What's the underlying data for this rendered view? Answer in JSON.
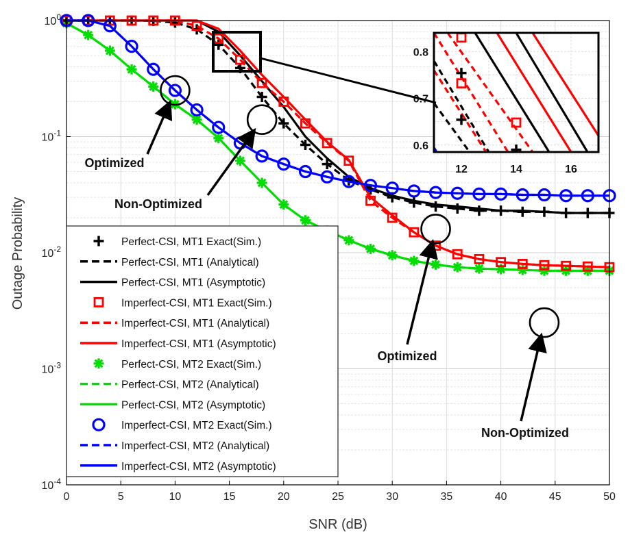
{
  "chart_data": {
    "type": "line",
    "yscale": "log",
    "xlabel": "SNR (dB)",
    "ylabel": "Outage Probability",
    "xlim": [
      0,
      50
    ],
    "ylim_exp": [
      -4,
      0
    ],
    "grid": true,
    "xticks": [
      0,
      5,
      10,
      15,
      20,
      25,
      30,
      35,
      40,
      45,
      50
    ],
    "yticks": [
      {
        "base": "10",
        "exp": "0"
      },
      {
        "base": "10",
        "exp": "-1"
      },
      {
        "base": "10",
        "exp": "-2"
      },
      {
        "base": "10",
        "exp": "-3"
      },
      {
        "base": "10",
        "exp": "-4"
      }
    ],
    "x": [
      0,
      2,
      4,
      6,
      8,
      10,
      12,
      14,
      16,
      18,
      20,
      22,
      24,
      26,
      28,
      30,
      32,
      34,
      36,
      38,
      40,
      42,
      44,
      46,
      48,
      50
    ],
    "series": [
      {
        "name": "Perfect-CSI, MT1 Exact(Sim.)",
        "color": "#000000",
        "style": "marker",
        "marker": "plus",
        "values": [
          1,
          1,
          1,
          1,
          0.995,
          0.96,
          0.84,
          0.62,
          0.39,
          0.22,
          0.13,
          0.085,
          0.058,
          0.042,
          0.035,
          0.03,
          0.027,
          0.025,
          0.024,
          0.023,
          0.023,
          0.0225,
          0.0225,
          0.022,
          0.022,
          0.022
        ]
      },
      {
        "name": "Perfect-CSI, MT1 (Analytical)",
        "color": "#000000",
        "style": "dash",
        "values": [
          1,
          1,
          1,
          1,
          0.995,
          0.96,
          0.84,
          0.62,
          0.39,
          0.22,
          0.13,
          0.085,
          0.058,
          0.042,
          0.035,
          0.03,
          0.027,
          0.025,
          0.024,
          0.023,
          0.023,
          0.0225,
          0.0225,
          0.022,
          0.022,
          0.022
        ]
      },
      {
        "name": "Perfect-CSI, MT1 (Asymptotic)",
        "color": "#000000",
        "style": "solid",
        "values": [
          1,
          1,
          1,
          1,
          1,
          1,
          1,
          0.8,
          0.5,
          0.3,
          0.18,
          0.1,
          0.065,
          0.045,
          0.036,
          0.031,
          0.028,
          0.026,
          0.025,
          0.024,
          0.023,
          0.023,
          0.0225,
          0.022,
          0.022,
          0.022
        ]
      },
      {
        "name": "Imperfect-CSI, MT1 Exact(Sim.)",
        "color": "#ff0000",
        "style": "marker",
        "marker": "square",
        "values": [
          1,
          1,
          1,
          1,
          1,
          1,
          0.9,
          0.7,
          0.46,
          0.29,
          0.2,
          0.13,
          0.088,
          0.062,
          0.028,
          0.02,
          0.015,
          0.0115,
          0.0097,
          0.0088,
          0.0083,
          0.008,
          0.0078,
          0.0077,
          0.0076,
          0.0075
        ]
      },
      {
        "name": "Imperfect-CSI, MT1 (Analytical)",
        "color": "#ff0000",
        "style": "dash",
        "values": [
          1,
          1,
          1,
          1,
          1,
          1,
          0.9,
          0.7,
          0.46,
          0.29,
          0.2,
          0.13,
          0.088,
          0.062,
          0.028,
          0.02,
          0.015,
          0.0115,
          0.0097,
          0.0088,
          0.0083,
          0.008,
          0.0078,
          0.0077,
          0.0076,
          0.0075
        ]
      },
      {
        "name": "Imperfect-CSI, MT1 (Asymptotic)",
        "color": "#ff0000",
        "style": "solid",
        "values": [
          1,
          1,
          1,
          1,
          1,
          1,
          1,
          0.85,
          0.55,
          0.34,
          0.22,
          0.14,
          0.09,
          0.063,
          0.03,
          0.021,
          0.015,
          0.0115,
          0.0097,
          0.0088,
          0.0083,
          0.008,
          0.0078,
          0.0077,
          0.0076,
          0.0075
        ]
      },
      {
        "name": "Perfect-CSI, MT2 Exact(Sim.)",
        "color": "#00dd00",
        "style": "marker",
        "marker": "asterisk",
        "values": [
          0.95,
          0.75,
          0.55,
          0.38,
          0.27,
          0.19,
          0.14,
          0.097,
          0.062,
          0.04,
          0.026,
          0.019,
          0.0155,
          0.0128,
          0.0108,
          0.0095,
          0.0085,
          0.0079,
          0.0075,
          0.0073,
          0.0072,
          0.0071,
          0.007,
          0.007,
          0.007,
          0.007
        ]
      },
      {
        "name": "Perfect-CSI, MT2 (Analytical)",
        "color": "#00dd00",
        "style": "dash",
        "values": [
          0.95,
          0.75,
          0.55,
          0.38,
          0.27,
          0.19,
          0.14,
          0.097,
          0.062,
          0.04,
          0.026,
          0.019,
          0.0155,
          0.0128,
          0.0108,
          0.0095,
          0.0085,
          0.0079,
          0.0075,
          0.0073,
          0.0072,
          0.0071,
          0.007,
          0.007,
          0.007,
          0.007
        ]
      },
      {
        "name": "Perfect-CSI, MT2 (Asymptotic)",
        "color": "#00dd00",
        "style": "solid",
        "values": [
          0.95,
          0.75,
          0.55,
          0.38,
          0.27,
          0.19,
          0.14,
          0.097,
          0.062,
          0.04,
          0.026,
          0.019,
          0.0155,
          0.0128,
          0.0108,
          0.0095,
          0.0085,
          0.0079,
          0.0075,
          0.0073,
          0.0072,
          0.0071,
          0.007,
          0.007,
          0.007,
          0.007
        ]
      },
      {
        "name": "Imperfect-CSI, MT2 Exact(Sim.)",
        "color": "#0000ff",
        "style": "marker",
        "marker": "circle",
        "values": [
          1,
          1,
          0.9,
          0.6,
          0.38,
          0.25,
          0.17,
          0.12,
          0.088,
          0.068,
          0.058,
          0.05,
          0.045,
          0.041,
          0.038,
          0.036,
          0.034,
          0.033,
          0.0325,
          0.032,
          0.032,
          0.0315,
          0.0315,
          0.031,
          0.031,
          0.031
        ]
      },
      {
        "name": "Imperfect-CSI, MT2 (Analytical)",
        "color": "#0000ff",
        "style": "dash",
        "values": [
          1,
          1,
          0.9,
          0.6,
          0.38,
          0.25,
          0.17,
          0.12,
          0.088,
          0.068,
          0.058,
          0.05,
          0.045,
          0.041,
          0.038,
          0.036,
          0.034,
          0.033,
          0.0325,
          0.032,
          0.032,
          0.0315,
          0.0315,
          0.031,
          0.031,
          0.031
        ]
      },
      {
        "name": "Imperfect-CSI, MT2 (Asymptotic)",
        "color": "#0000ff",
        "style": "solid",
        "values": [
          1,
          1,
          0.9,
          0.6,
          0.38,
          0.25,
          0.17,
          0.12,
          0.088,
          0.068,
          0.058,
          0.05,
          0.045,
          0.041,
          0.038,
          0.036,
          0.034,
          0.033,
          0.0325,
          0.032,
          0.032,
          0.0315,
          0.0315,
          0.031,
          0.031,
          0.031
        ]
      }
    ],
    "annotations": [
      {
        "text": "Optimized",
        "target": [
          10,
          0.25
        ]
      },
      {
        "text": "Non-Optimized",
        "target": [
          18,
          0.14
        ]
      },
      {
        "text": "Optimized",
        "target": [
          34,
          0.016
        ]
      },
      {
        "text": "Non-Optimized",
        "target": [
          44,
          0.0025
        ]
      }
    ],
    "inset": {
      "xlim": [
        11,
        17
      ],
      "ylim": [
        0.585,
        0.84
      ],
      "xticks": [
        "12",
        "14",
        "16"
      ],
      "yticks": [
        "0.8",
        "0.7",
        "0.6"
      ],
      "lines": [
        {
          "color": "#000000",
          "style": "dash",
          "points": [
            [
              11,
              0.78
            ],
            [
              13,
              0.585
            ]
          ]
        },
        {
          "color": "#000000",
          "style": "dash",
          "points": [
            [
              11,
              0.69
            ],
            [
              12.3,
              0.585
            ]
          ]
        },
        {
          "color": "#ff0000",
          "style": "dash",
          "points": [
            [
              11,
              0.84
            ],
            [
              13.7,
              0.585
            ]
          ]
        },
        {
          "color": "#ff0000",
          "style": "dash",
          "points": [
            [
              11,
              0.76
            ],
            [
              12.9,
              0.585
            ]
          ]
        },
        {
          "color": "#ff0000",
          "style": "dash",
          "points": [
            [
              11.5,
              0.84
            ],
            [
              14.6,
              0.585
            ]
          ]
        },
        {
          "color": "#000000",
          "style": "solid",
          "points": [
            [
              12.5,
              0.84
            ],
            [
              15.2,
              0.585
            ]
          ]
        },
        {
          "color": "#ff0000",
          "style": "solid",
          "points": [
            [
              13.3,
              0.84
            ],
            [
              16,
              0.585
            ]
          ]
        },
        {
          "color": "#000000",
          "style": "solid",
          "points": [
            [
              14,
              0.84
            ],
            [
              16.6,
              0.585
            ]
          ]
        },
        {
          "color": "#ff0000",
          "style": "solid",
          "points": [
            [
              14.6,
              0.84
            ],
            [
              17,
              0.62
            ]
          ]
        },
        {
          "color": "#0000ff",
          "style": "solid",
          "points": [
            [
              11,
              0.595
            ],
            [
              11.1,
              0.585
            ]
          ]
        }
      ],
      "markers": [
        {
          "color": "#000000",
          "marker": "plus",
          "x": 12,
          "y": 0.754
        },
        {
          "color": "#000000",
          "marker": "plus",
          "x": 12,
          "y": 0.654
        },
        {
          "color": "#000000",
          "marker": "plus",
          "x": 14,
          "y": 0.59
        },
        {
          "color": "#ff0000",
          "marker": "square",
          "x": 12,
          "y": 0.83
        },
        {
          "color": "#ff0000",
          "marker": "square",
          "x": 12,
          "y": 0.732
        },
        {
          "color": "#ff0000",
          "marker": "square",
          "x": 14,
          "y": 0.648
        }
      ]
    }
  }
}
